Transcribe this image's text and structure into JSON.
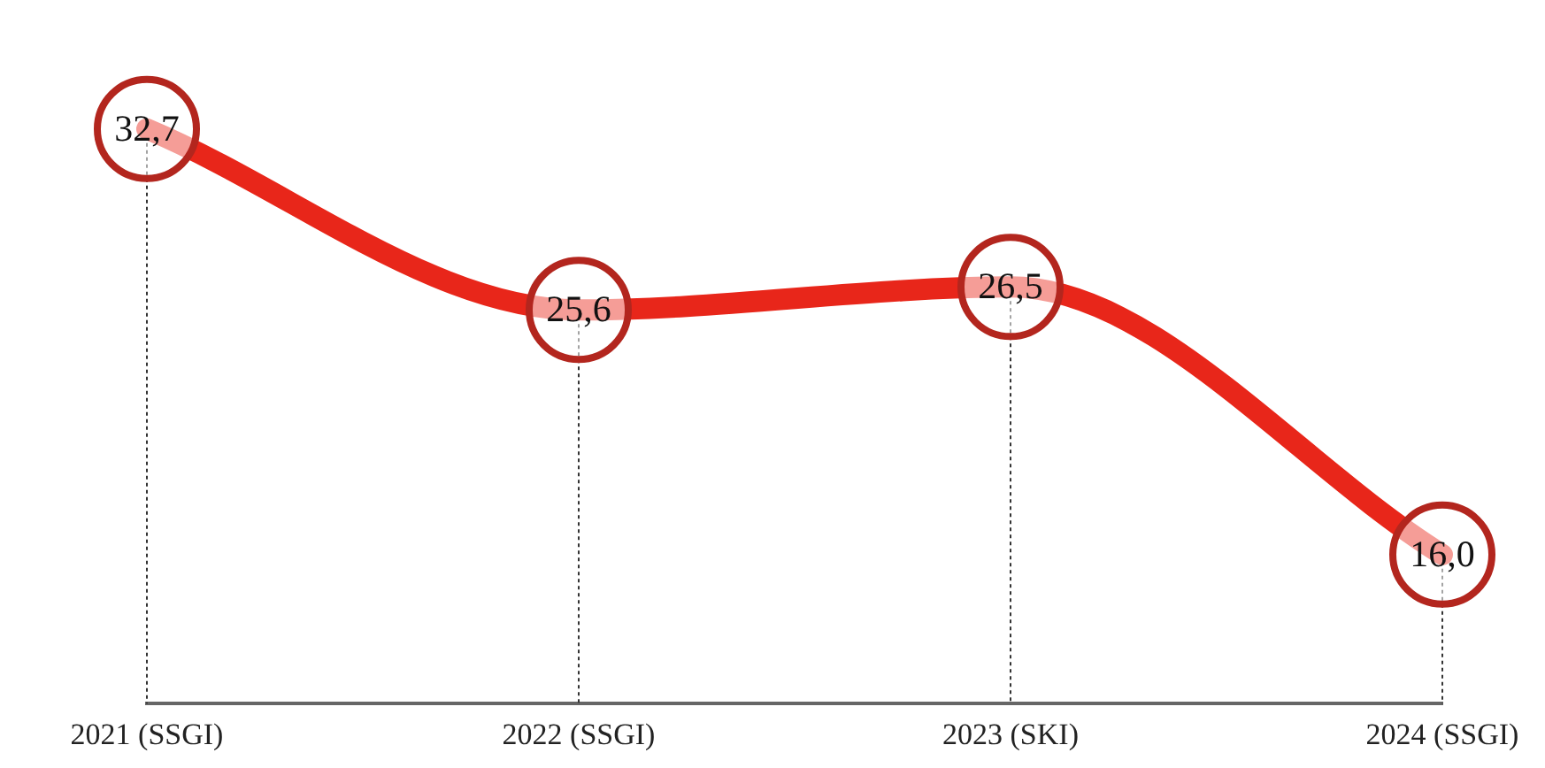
{
  "chart_data": {
    "type": "line",
    "categories": [
      "2021 (SSGI)",
      "2022 (SSGI)",
      "2023 (SKI)",
      "2024 (SSGI)"
    ],
    "series": [
      {
        "color": "#e8261a",
        "values": [
          32.7,
          25.6,
          26.5,
          16.0
        ],
        "value_labels": [
          "32,7",
          "25,6",
          "26,5",
          "16,0"
        ]
      }
    ],
    "tick_labels": "x",
    "grid": "x",
    "legend": false,
    "line_style": "solid"
  }
}
